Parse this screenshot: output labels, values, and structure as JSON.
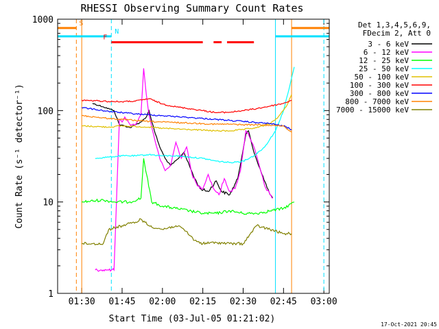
{
  "chart_data": {
    "type": "line",
    "title": "RHESSI Observing Summary Count Rates",
    "xlabel": "Start Time (03-Jul-05 01:21:02)",
    "ylabel": "Count Rate (s⁻¹ detector⁻¹)",
    "xlim": [
      "01:21:02",
      "03:02:00"
    ],
    "ylim": [
      1,
      1000
    ],
    "yscale": "log",
    "x_ticks": [
      "01:30",
      "01:45",
      "02:00",
      "02:15",
      "02:30",
      "02:45",
      "03:00"
    ],
    "y_ticks": [
      "1",
      "10",
      "100",
      "1000"
    ],
    "timestamp": "17-Oct-2021 20:45",
    "legend": {
      "position": "right",
      "header": [
        "Det 1,3,4,5,6,9,",
        "FDecim 2, Att 0"
      ]
    },
    "series": [
      {
        "name": "3 - 6 keV",
        "color": "#000000",
        "times": [
          "01:34",
          "01:38",
          "01:42",
          "01:44",
          "01:46",
          "01:48",
          "01:50",
          "01:52",
          "01:54",
          "01:55",
          "01:57",
          "01:59",
          "02:01",
          "02:03",
          "02:06",
          "02:08",
          "02:10",
          "02:12",
          "02:14",
          "02:17",
          "02:20",
          "02:22",
          "02:25",
          "02:28",
          "02:31",
          "02:32",
          "02:34",
          "02:37",
          "02:40",
          "02:41"
        ],
        "values": [
          120,
          110,
          100,
          70,
          68,
          65,
          70,
          75,
          85,
          100,
          60,
          40,
          30,
          25,
          30,
          35,
          25,
          18,
          14,
          13,
          17,
          13,
          12,
          18,
          55,
          60,
          35,
          20,
          12,
          11
        ]
      },
      {
        "name": "6 - 12 keV",
        "color": "#ff00ff",
        "times": [
          "01:35",
          "01:37",
          "01:38",
          "01:39",
          "01:40",
          "01:41",
          "01:42",
          "01:44",
          "01:45",
          "01:46",
          "01:48",
          "01:50",
          "01:52",
          "01:53",
          "01:54",
          "01:55",
          "01:57",
          "01:59",
          "02:01",
          "02:03",
          "02:05",
          "02:07",
          "02:09",
          "02:11",
          "02:13",
          "02:15",
          "02:17",
          "02:19",
          "02:21",
          "02:23",
          "02:25",
          "02:27",
          "02:29",
          "02:31",
          "02:32",
          "02:34",
          "02:36",
          "02:38",
          "02:40",
          "02:41"
        ],
        "values": [
          1.8,
          1.8,
          1.8,
          1.8,
          1.8,
          1.8,
          1.8,
          80,
          75,
          85,
          70,
          70,
          90,
          290,
          150,
          90,
          50,
          30,
          22,
          25,
          45,
          30,
          40,
          20,
          15,
          14,
          20,
          14,
          12,
          18,
          13,
          14,
          22,
          60,
          55,
          40,
          25,
          15,
          12,
          11
        ]
      },
      {
        "name": "12 - 25 keV",
        "color": "#00ff00",
        "times": [
          "01:30",
          "01:38",
          "01:42",
          "01:48",
          "01:52",
          "01:53",
          "01:56",
          "02:00",
          "02:05",
          "02:10",
          "02:15",
          "02:20",
          "02:25",
          "02:30",
          "02:35",
          "02:40",
          "02:45",
          "02:49"
        ],
        "values": [
          10,
          10.5,
          10,
          10,
          11,
          30,
          10,
          9,
          8.5,
          8,
          7.5,
          7.5,
          8,
          7.5,
          7.5,
          8,
          8.5,
          10
        ]
      },
      {
        "name": "25 - 50 keV",
        "color": "#00ffff",
        "times": [
          "01:35",
          "01:40",
          "01:45",
          "01:50",
          "01:55",
          "02:00",
          "02:05",
          "02:10",
          "02:15",
          "02:20",
          "02:25",
          "02:30",
          "02:34",
          "02:38",
          "02:42",
          "02:45",
          "02:47",
          "02:49"
        ],
        "values": [
          30,
          31,
          32,
          32,
          33,
          32,
          32,
          31,
          30,
          28,
          27,
          28,
          32,
          40,
          60,
          100,
          170,
          300
        ]
      },
      {
        "name": "50 - 100 keV",
        "color": "#e0c000",
        "times": [
          "01:30",
          "01:35",
          "01:40",
          "01:45",
          "01:50",
          "01:55",
          "02:00",
          "02:05",
          "02:10",
          "02:15",
          "02:20",
          "02:25",
          "02:30",
          "02:35",
          "02:40",
          "02:43",
          "02:46",
          "02:48"
        ],
        "values": [
          68,
          67,
          66,
          68,
          67,
          66,
          64,
          63,
          62,
          61,
          60,
          60,
          62,
          65,
          72,
          85,
          110,
          150
        ]
      },
      {
        "name": "100 - 300 keV",
        "color": "#ff0000",
        "times": [
          "01:30",
          "01:35",
          "01:40",
          "01:45",
          "01:50",
          "01:55",
          "02:00",
          "02:05",
          "02:10",
          "02:15",
          "02:20",
          "02:25",
          "02:30",
          "02:35",
          "02:40",
          "02:45",
          "02:48"
        ],
        "values": [
          130,
          128,
          126,
          125,
          127,
          135,
          118,
          110,
          105,
          100,
          95,
          96,
          100,
          105,
          112,
          120,
          130
        ]
      },
      {
        "name": "300 - 800 keV",
        "color": "#0000ff",
        "times": [
          "01:30",
          "01:35",
          "01:40",
          "01:45",
          "01:50",
          "01:55",
          "02:00",
          "02:05",
          "02:10",
          "02:15",
          "02:20",
          "02:25",
          "02:30",
          "02:35",
          "02:40",
          "02:45",
          "02:48"
        ],
        "values": [
          108,
          103,
          98,
          95,
          92,
          90,
          88,
          86,
          84,
          82,
          80,
          78,
          76,
          74,
          72,
          68,
          62
        ]
      },
      {
        "name": "800 - 7000 keV",
        "color": "#ff8000",
        "times": [
          "01:30",
          "01:35",
          "01:40",
          "01:45",
          "01:50",
          "01:55",
          "02:00",
          "02:05",
          "02:10",
          "02:15",
          "02:20",
          "02:25",
          "02:30",
          "02:35",
          "02:40",
          "02:45",
          "02:48"
        ],
        "values": [
          88,
          85,
          82,
          80,
          78,
          76,
          75,
          74,
          73,
          72,
          71,
          71,
          70,
          70,
          69,
          68,
          58
        ]
      },
      {
        "name": "7000 - 15000 keV",
        "color": "#808000",
        "times": [
          "01:30",
          "01:38",
          "01:40",
          "01:45",
          "01:50",
          "01:52",
          "01:55",
          "02:00",
          "02:05",
          "02:08",
          "02:12",
          "02:15",
          "02:20",
          "02:25",
          "02:30",
          "02:35",
          "02:40",
          "02:45",
          "02:48"
        ],
        "values": [
          3.5,
          3.5,
          5,
          5.5,
          6,
          6.5,
          5.5,
          5,
          5.5,
          5,
          3.8,
          3.5,
          3.6,
          3.5,
          3.5,
          5.5,
          5,
          4.5,
          4.5
        ]
      }
    ],
    "flags": [
      {
        "label": "S",
        "color": "#ff8000",
        "value": 800,
        "segments": [
          [
            "01:21:02",
            "01:28:00"
          ],
          [
            "02:48:00",
            "03:02:00"
          ]
        ]
      },
      {
        "label": "N",
        "color": "#00e0ff",
        "value": 650,
        "segments": [
          [
            "01:21:02",
            "01:41:00"
          ],
          [
            "02:42:00",
            "03:02:00"
          ]
        ]
      },
      {
        "label": "F",
        "color": "#ff0000",
        "value": 560,
        "segments": [
          [
            "01:41:00",
            "02:15:00"
          ],
          [
            "02:19:00",
            "02:22:00"
          ],
          [
            "02:24:00",
            "02:34:00"
          ]
        ]
      }
    ],
    "vlines": [
      {
        "time": "01:28:00",
        "color": "#ff8000",
        "style": "dashed"
      },
      {
        "time": "01:30:00",
        "color": "#ff8000",
        "style": "solid"
      },
      {
        "time": "01:41:00",
        "color": "#00e0ff",
        "style": "dashed"
      },
      {
        "time": "02:42:00",
        "color": "#00e0ff",
        "style": "solid"
      },
      {
        "time": "02:48:00",
        "color": "#ff8000",
        "style": "solid"
      },
      {
        "time": "03:00:00",
        "color": "#00e0ff",
        "style": "dashed"
      }
    ]
  }
}
